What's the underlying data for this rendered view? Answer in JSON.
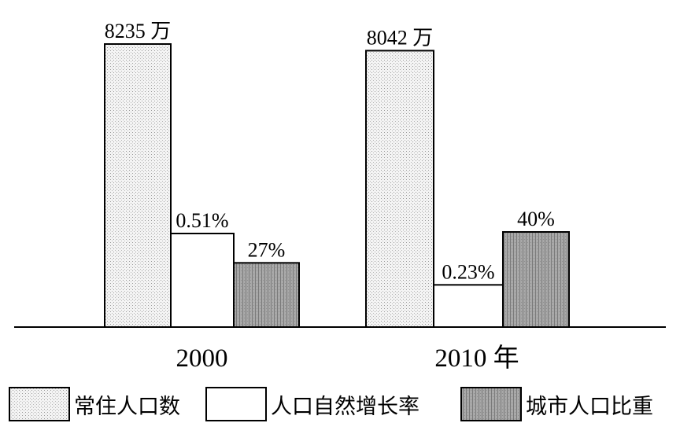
{
  "chart_data": {
    "type": "bar",
    "categories": [
      "2000",
      "2010 年"
    ],
    "series": [
      {
        "name": "常住人口数",
        "values": [
          8235,
          8042
        ],
        "labels": [
          "8235 万",
          "8042 万"
        ],
        "pattern": "dots"
      },
      {
        "name": "人口自然增长率",
        "values": [
          0.51,
          0.23
        ],
        "labels": [
          "0.51%",
          "0.23%"
        ],
        "pattern": "none"
      },
      {
        "name": "城市人口比重",
        "values": [
          27,
          40
        ],
        "labels": [
          "27%",
          "40%"
        ],
        "pattern": "vlines"
      }
    ],
    "legend": {
      "placement": "bottom"
    },
    "axes_shown": "baseline only"
  }
}
